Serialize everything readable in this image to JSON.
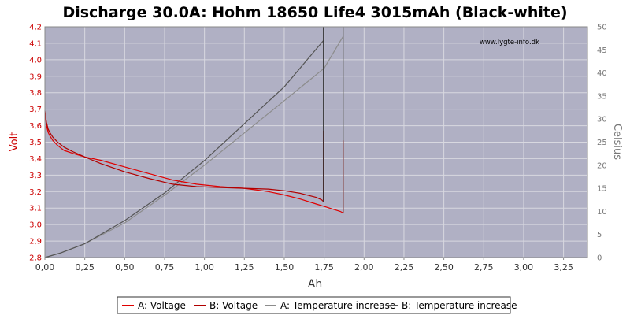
{
  "chart_data": {
    "type": "line",
    "title": "Discharge 30.0A: Hohm 18650 Life4 3015mAh (Black-white)",
    "xlabel": "Ah",
    "ylabel_left": "Volt",
    "ylabel_right": "Celsius",
    "watermark": "www.lygte-info.dk",
    "xlim": [
      0,
      3.4
    ],
    "ylim_left": [
      2.8,
      4.2
    ],
    "ylim_right": [
      0,
      50
    ],
    "x_ticks": [
      "0,00",
      "0,25",
      "0,50",
      "0,75",
      "1,00",
      "1,25",
      "1,50",
      "1,75",
      "2,00",
      "2,25",
      "2,50",
      "2,75",
      "3,00",
      "3,25"
    ],
    "y_left_ticks": [
      "2,8",
      "2,9",
      "3,0",
      "3,1",
      "3,2",
      "3,3",
      "3,4",
      "3,5",
      "3,6",
      "3,7",
      "3,8",
      "3,9",
      "4,0",
      "4,1",
      "4,2"
    ],
    "y_right_ticks": [
      "0",
      "5",
      "10",
      "15",
      "20",
      "25",
      "30",
      "35",
      "40",
      "45",
      "50"
    ],
    "grid": true,
    "legend_position": "bottom",
    "colors": {
      "plot_bg": "#b0b0c4",
      "grid": "#d8d8e0",
      "voltage_a": "#e00000",
      "voltage_b": "#b00000",
      "temp_a": "#8c8c8c",
      "temp_b": "#555555",
      "left_axis": "#cc0000",
      "right_axis": "#777777"
    },
    "series": [
      {
        "name": "A: Voltage",
        "axis": "left",
        "color": "#e00000",
        "x": [
          0.0,
          0.005,
          0.01,
          0.02,
          0.03,
          0.05,
          0.08,
          0.12,
          0.18,
          0.25,
          0.35,
          0.5,
          0.65,
          0.8,
          0.95,
          1.1,
          1.25,
          1.4,
          1.5,
          1.6,
          1.7,
          1.75,
          1.85,
          1.87,
          1.87,
          1.87
        ],
        "y": [
          3.68,
          3.64,
          3.6,
          3.56,
          3.54,
          3.51,
          3.48,
          3.45,
          3.43,
          3.41,
          3.39,
          3.35,
          3.31,
          3.27,
          3.245,
          3.23,
          3.22,
          3.2,
          3.18,
          3.155,
          3.125,
          3.11,
          3.08,
          3.07,
          3.33,
          3.51
        ]
      },
      {
        "name": "B: Voltage",
        "axis": "left",
        "color": "#b00000",
        "x": [
          0.0,
          0.005,
          0.01,
          0.02,
          0.03,
          0.05,
          0.08,
          0.12,
          0.18,
          0.25,
          0.35,
          0.5,
          0.65,
          0.8,
          0.95,
          1.1,
          1.25,
          1.4,
          1.5,
          1.6,
          1.7,
          1.735,
          1.745,
          1.745,
          1.745
        ],
        "y": [
          3.69,
          3.65,
          3.62,
          3.58,
          3.56,
          3.53,
          3.5,
          3.47,
          3.44,
          3.41,
          3.37,
          3.32,
          3.28,
          3.245,
          3.23,
          3.225,
          3.22,
          3.215,
          3.205,
          3.19,
          3.165,
          3.15,
          3.14,
          3.35,
          3.57
        ]
      },
      {
        "name": "A: Temperature increase",
        "axis": "right",
        "color": "#8c8c8c",
        "x": [
          0.0,
          0.1,
          0.25,
          0.5,
          0.75,
          1.0,
          1.25,
          1.5,
          1.75,
          1.87
        ],
        "y": [
          0,
          1,
          3,
          7.5,
          13.5,
          20,
          27,
          34,
          41,
          48
        ]
      },
      {
        "name": "B: Temperature increase",
        "axis": "right",
        "color": "#555555",
        "x": [
          0.0,
          0.1,
          0.25,
          0.5,
          0.75,
          1.0,
          1.25,
          1.5,
          1.745
        ],
        "y": [
          0,
          1,
          3,
          8,
          14,
          21,
          29,
          37,
          47
        ]
      }
    ]
  }
}
